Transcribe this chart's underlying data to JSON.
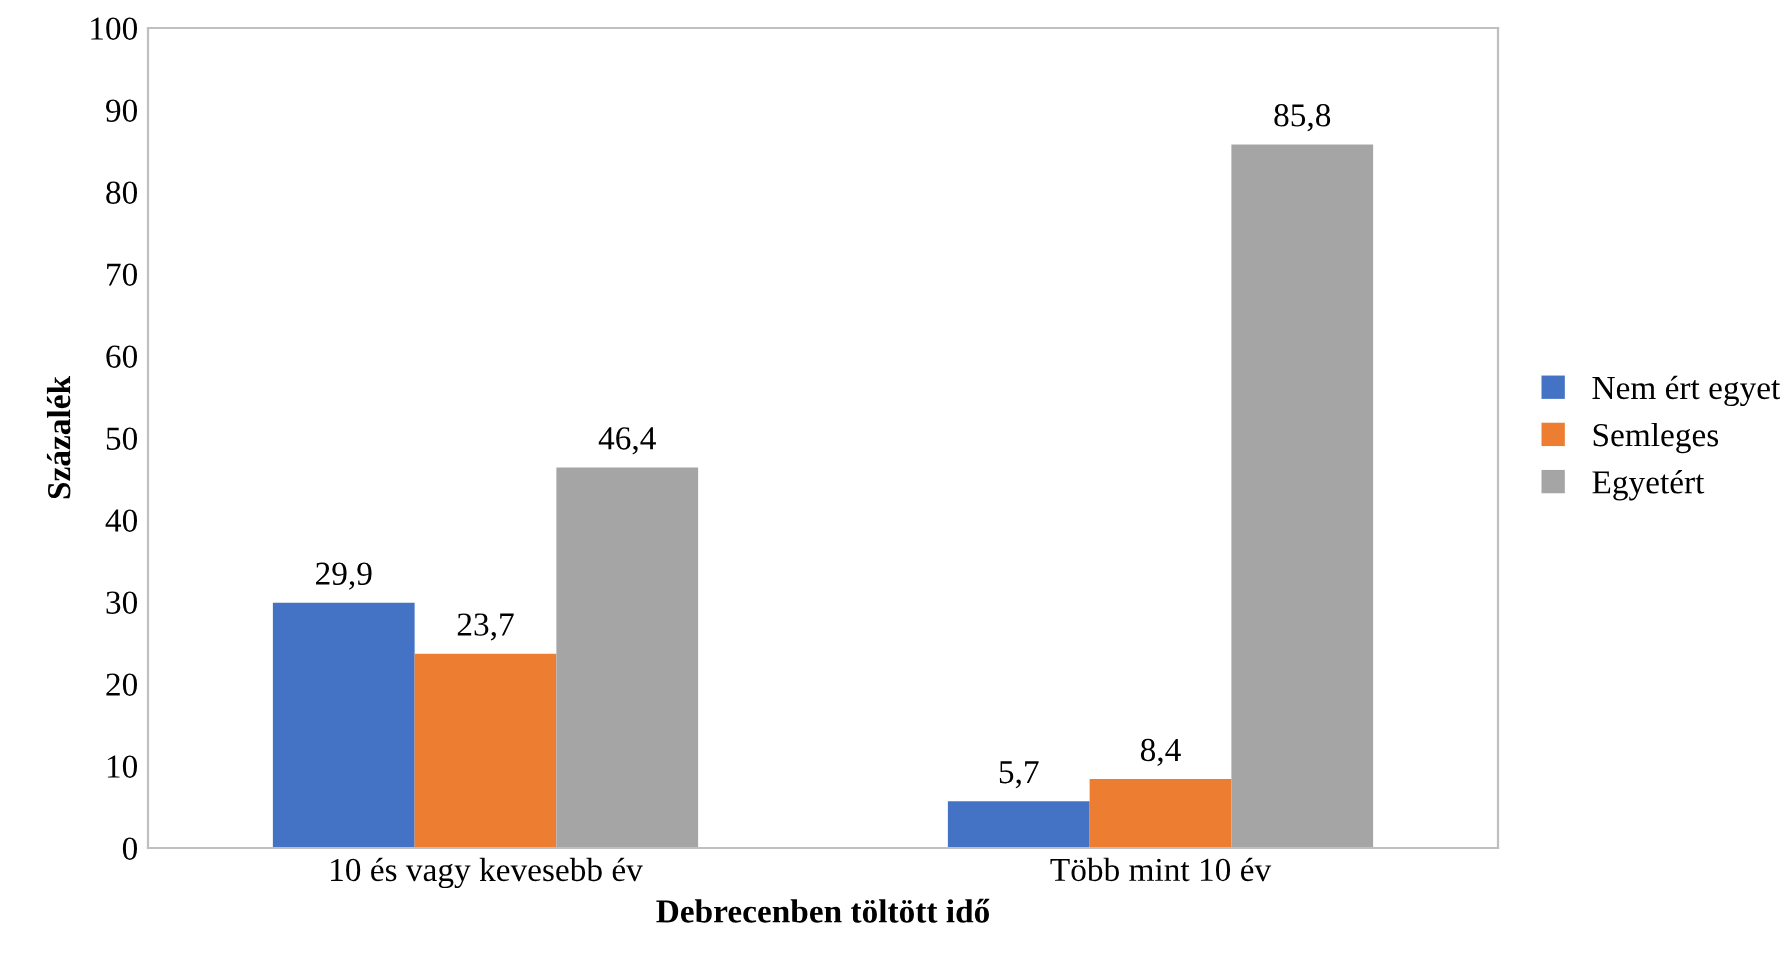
{
  "chart_data": {
    "type": "bar",
    "xlabel": "Debrecenben töltött idő",
    "ylabel": "Százalék",
    "categories": [
      "10 és vagy kevesebb év",
      "Több mint 10 év"
    ],
    "series": [
      {
        "name": "Nem ért egyet",
        "color": "#4472c4",
        "values": [
          29.9,
          5.7
        ],
        "value_labels": [
          "29,9",
          "5,7"
        ]
      },
      {
        "name": "Semleges",
        "color": "#ed7d31",
        "values": [
          23.7,
          8.4
        ],
        "value_labels": [
          "23,7",
          "8,4"
        ]
      },
      {
        "name": "Egyetért",
        "color": "#a5a5a5",
        "values": [
          46.4,
          85.8
        ],
        "value_labels": [
          "46,4",
          "85,8"
        ]
      }
    ],
    "ylim": [
      0,
      100
    ],
    "yticks": [
      0,
      10,
      20,
      30,
      40,
      50,
      60,
      70,
      80,
      90,
      100
    ],
    "grid": false,
    "legend": "right"
  }
}
